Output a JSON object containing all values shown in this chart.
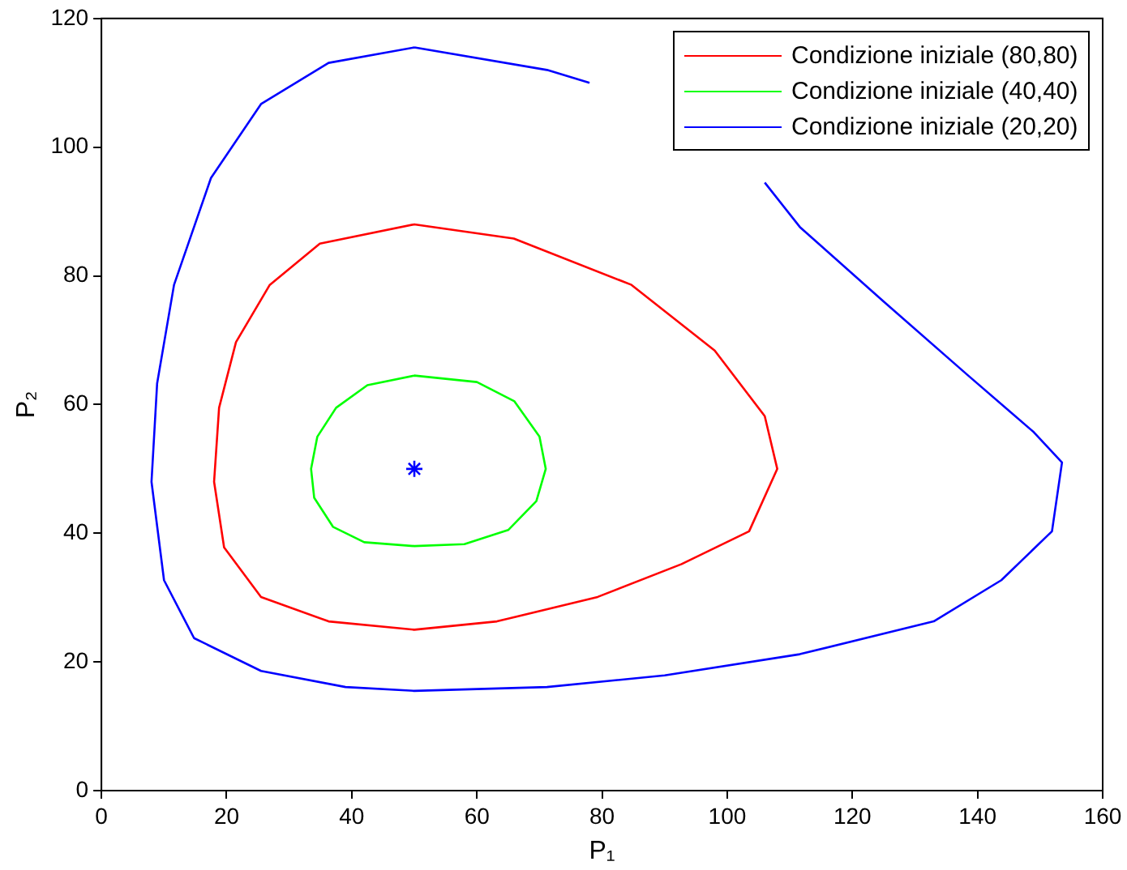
{
  "chart_data": {
    "type": "line",
    "xlabel": "P₁",
    "ylabel": "P₂",
    "xlim": [
      0,
      160
    ],
    "ylim": [
      0,
      120
    ],
    "xticks": [
      0,
      20,
      40,
      60,
      80,
      100,
      120,
      140,
      160
    ],
    "yticks": [
      0,
      20,
      40,
      60,
      80,
      100,
      120
    ],
    "legend": "top right",
    "marker": "none",
    "line_style": "solid",
    "series": [
      {
        "name": "Condizione iniziale (80,80)",
        "color": "#ff0000",
        "x": [
          50,
          65.9,
          84.7,
          98,
          106,
          108,
          103.5,
          92.7,
          79.3,
          63.2,
          50,
          36.3,
          25.5,
          19.6,
          18,
          18.8,
          21.5,
          26.9,
          34.9,
          50,
          65.9
        ],
        "values": [
          88,
          85.8,
          78.6,
          68.4,
          58.2,
          50,
          40.3,
          35.2,
          30.1,
          26.3,
          25,
          26.3,
          30.1,
          37.8,
          48,
          59.5,
          69.7,
          78.6,
          85,
          88,
          85.8
        ]
      },
      {
        "name": "Condizione iniziale (40,40)",
        "color": "#00ff00",
        "x": [
          50,
          60,
          66,
          70,
          71,
          69.5,
          65,
          58,
          50,
          42,
          37,
          34,
          33.5,
          34.5,
          37.5,
          42.5,
          50,
          60
        ],
        "values": [
          64.5,
          63.5,
          60.5,
          55,
          50,
          45,
          40.5,
          38.3,
          38,
          38.6,
          41,
          45.5,
          50,
          55,
          59.5,
          63,
          64.5,
          63.5
        ]
      },
      {
        "name": "Condizione iniziale (20,20)",
        "color": "#0000ff",
        "x": [
          50,
          71.2,
          78,
          90,
          106,
          111.6,
          125,
          138.4,
          149,
          153.5,
          151.9,
          143.8,
          133,
          111.6,
          90,
          71.2,
          50,
          39,
          25.5,
          14.8,
          10,
          8,
          8.9,
          11.6,
          17.5,
          25.5,
          36.3,
          50
        ],
        "values": [
          115.5,
          112,
          110,
          null,
          94.5,
          87.6,
          76,
          64.6,
          55.7,
          51,
          40.3,
          32.7,
          26.3,
          21.2,
          17.9,
          16.1,
          15.5,
          16.1,
          18.6,
          23.7,
          32.7,
          48,
          63.3,
          78.6,
          95.2,
          106.7,
          113.1,
          115.5
        ]
      },
      {
        "type": "scatter",
        "color": "#0000ff",
        "marker": "cross",
        "x": [
          50
        ],
        "values": [
          50
        ]
      }
    ]
  }
}
